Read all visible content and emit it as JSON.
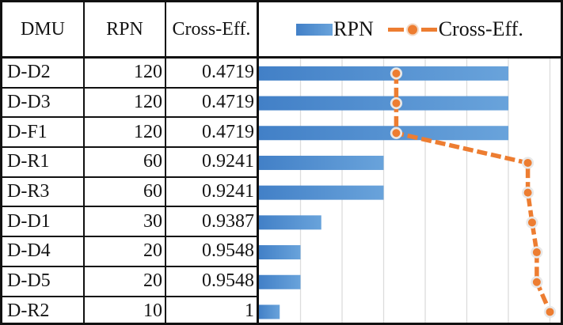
{
  "table": {
    "headers": [
      "DMU",
      "RPN",
      "Cross-Eff."
    ],
    "rows": [
      [
        "D-D2",
        "120",
        "0.4719"
      ],
      [
        "D-D3",
        "120",
        "0.4719"
      ],
      [
        "D-F1",
        "120",
        "0.4719"
      ],
      [
        "D-R1",
        "60",
        "0.9241"
      ],
      [
        "D-R3",
        "60",
        "0.9241"
      ],
      [
        "D-D1",
        "30",
        "0.9387"
      ],
      [
        "D-D4",
        "20",
        "0.9548"
      ],
      [
        "D-D5",
        "20",
        "0.9548"
      ],
      [
        "D-R2",
        "10",
        "1"
      ]
    ]
  },
  "legend": [
    {
      "label": "RPN",
      "swatch": "bar-swatch"
    },
    {
      "label": "Cross-Eff.",
      "swatch": "line-marker-swatch"
    }
  ],
  "chart_data": {
    "type": "bar",
    "orientation": "horizontal",
    "categories": [
      "D-D2",
      "D-D3",
      "D-F1",
      "D-R1",
      "D-R3",
      "D-D1",
      "D-D4",
      "D-D5",
      "D-R2"
    ],
    "series": [
      {
        "name": "RPN",
        "type": "bar",
        "axis": "primary",
        "values": [
          120,
          120,
          120,
          60,
          60,
          30,
          20,
          20,
          10
        ]
      },
      {
        "name": "Cross-Eff.",
        "type": "line",
        "axis": "secondary",
        "marker": "circle",
        "values": [
          0.4719,
          0.4719,
          0.4719,
          0.9241,
          0.9241,
          0.9387,
          0.9548,
          0.9548,
          1
        ]
      }
    ],
    "primary_axis": {
      "min": 0,
      "max": 140,
      "gridline_step": 20,
      "gridlines_visible": true
    },
    "secondary_axis": {
      "min": 0,
      "max": 1
    },
    "legend_position": "top",
    "grid": true
  },
  "colors": {
    "bar_gradient_start": "#4280C7",
    "bar_gradient_end": "#69A3DB",
    "line_orange": "#ED7D31",
    "marker_ring": "#E8E8E8",
    "gridline": "#DCDCDC",
    "border_black": "#111111",
    "background": "#FFFFFF"
  }
}
